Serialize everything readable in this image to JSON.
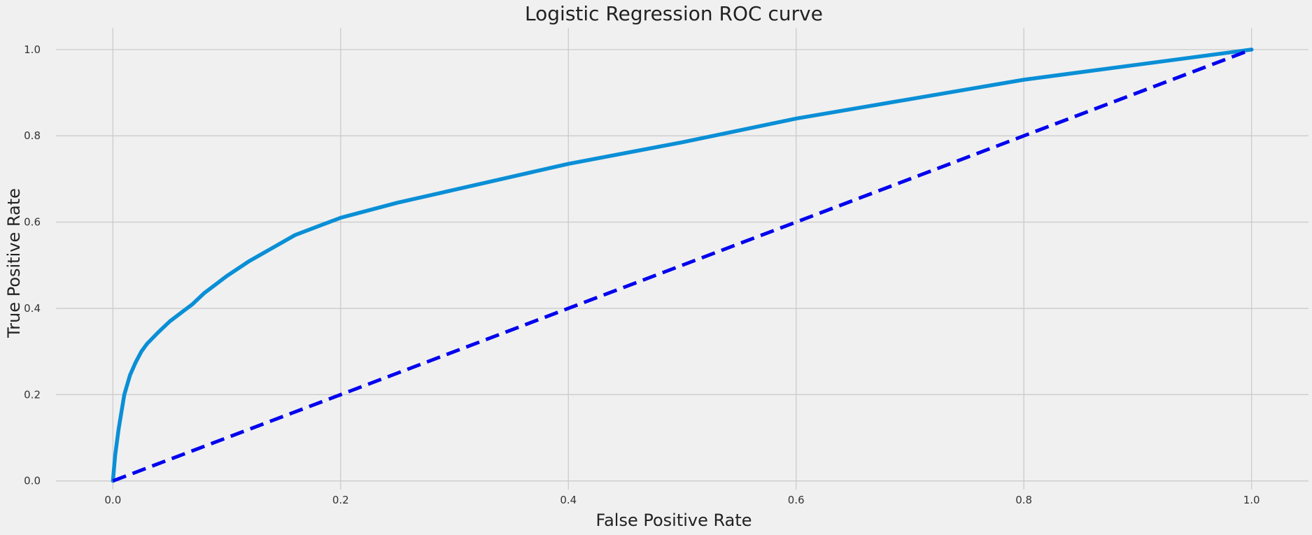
{
  "chart_data": {
    "type": "line",
    "title": "Logistic Regression ROC curve",
    "xlabel": "False Positive Rate",
    "ylabel": "True Positive Rate",
    "xlim": [
      -0.05,
      1.05
    ],
    "ylim": [
      -0.02,
      1.05
    ],
    "xticks": [
      "0.0",
      "0.2",
      "0.4",
      "0.6",
      "0.8",
      "1.0"
    ],
    "yticks": [
      "0.0",
      "0.2",
      "0.4",
      "0.6",
      "0.8",
      "1.0"
    ],
    "grid": true,
    "legend": "none",
    "colors": {
      "background": "#f0f0f0",
      "grid": "#cbcbcb",
      "roc": "#0a8fd6",
      "baseline": "#0000ee"
    },
    "series": [
      {
        "style": "solid",
        "x": [
          0.0,
          0.002,
          0.005,
          0.01,
          0.015,
          0.02,
          0.025,
          0.03,
          0.04,
          0.05,
          0.06,
          0.07,
          0.08,
          0.09,
          0.1,
          0.12,
          0.14,
          0.16,
          0.18,
          0.2,
          0.25,
          0.3,
          0.35,
          0.4,
          0.45,
          0.5,
          0.6,
          0.7,
          0.8,
          0.9,
          1.0
        ],
        "y": [
          0.0,
          0.06,
          0.12,
          0.2,
          0.245,
          0.275,
          0.3,
          0.318,
          0.345,
          0.37,
          0.39,
          0.41,
          0.435,
          0.455,
          0.475,
          0.51,
          0.54,
          0.57,
          0.59,
          0.61,
          0.645,
          0.675,
          0.705,
          0.735,
          0.76,
          0.785,
          0.84,
          0.885,
          0.93,
          0.965,
          1.0
        ]
      },
      {
        "style": "dashed",
        "x": [
          0.0,
          1.0
        ],
        "y": [
          0.0,
          1.0
        ]
      }
    ]
  }
}
